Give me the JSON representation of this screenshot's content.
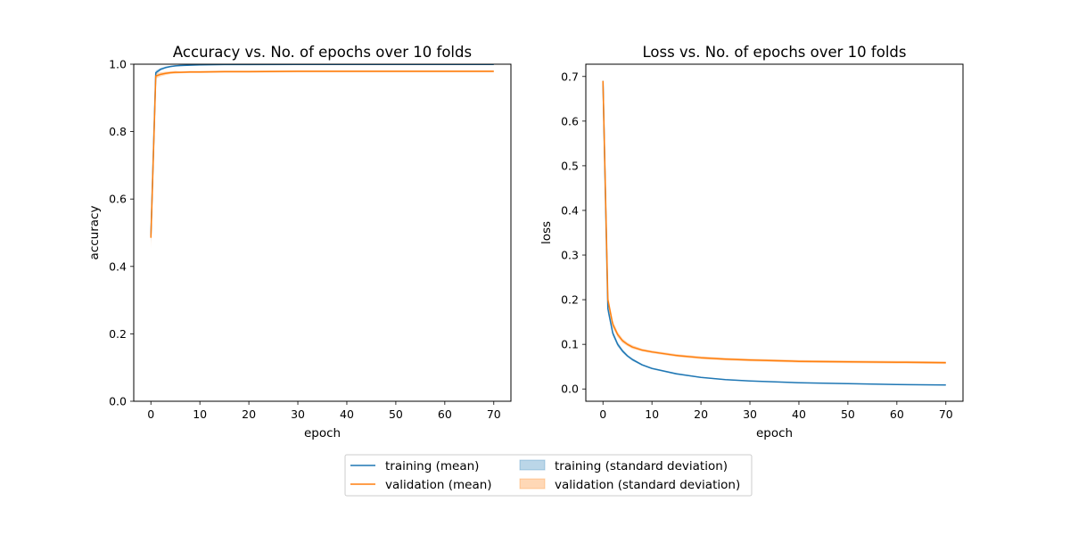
{
  "chart_data": [
    {
      "type": "line",
      "title": "Accuracy vs. No. of epochs over 10 folds",
      "xlabel": "epoch",
      "ylabel": "accuracy",
      "xlim": [
        -3.5,
        73.5
      ],
      "ylim": [
        0.0,
        1.0
      ],
      "xticks": [
        0,
        10,
        20,
        30,
        40,
        50,
        60,
        70
      ],
      "yticks": [
        0.0,
        0.2,
        0.4,
        0.6,
        0.8,
        1.0
      ],
      "ytick_labels": [
        "0.0",
        "0.2",
        "0.4",
        "0.6",
        "0.8",
        "1.0"
      ],
      "grid": false,
      "series": [
        {
          "name": "training (mean)",
          "color": "#1f77b4",
          "x": [
            0,
            1,
            2,
            3,
            4,
            5,
            6,
            8,
            10,
            15,
            20,
            30,
            40,
            50,
            60,
            70
          ],
          "y": [
            0.49,
            0.975,
            0.985,
            0.99,
            0.993,
            0.995,
            0.996,
            0.997,
            0.998,
            0.999,
            0.999,
            0.9995,
            0.9995,
            0.9995,
            0.9995,
            0.9995
          ],
          "std": [
            0.02,
            0.006,
            0.004,
            0.003,
            0.002,
            0.002,
            0.002,
            0.001,
            0.001,
            0.001,
            0.001,
            0.0005,
            0.0005,
            0.0005,
            0.0005,
            0.0005
          ]
        },
        {
          "name": "validation (mean)",
          "color": "#ff7f0e",
          "x": [
            0,
            1,
            2,
            3,
            4,
            5,
            6,
            8,
            10,
            15,
            20,
            30,
            40,
            50,
            60,
            70
          ],
          "y": [
            0.485,
            0.965,
            0.97,
            0.973,
            0.975,
            0.976,
            0.976,
            0.977,
            0.977,
            0.978,
            0.978,
            0.979,
            0.979,
            0.979,
            0.979,
            0.979
          ],
          "std": [
            0.03,
            0.008,
            0.006,
            0.005,
            0.004,
            0.004,
            0.003,
            0.003,
            0.003,
            0.003,
            0.003,
            0.003,
            0.003,
            0.003,
            0.003,
            0.003
          ]
        }
      ]
    },
    {
      "type": "line",
      "title": "Loss vs. No. of epochs over 10 folds",
      "xlabel": "epoch",
      "ylabel": "loss",
      "xlim": [
        -3.5,
        73.5
      ],
      "ylim": [
        -0.0275,
        0.7275
      ],
      "xticks": [
        0,
        10,
        20,
        30,
        40,
        50,
        60,
        70
      ],
      "yticks": [
        0.0,
        0.1,
        0.2,
        0.3,
        0.4,
        0.5,
        0.6,
        0.7
      ],
      "ytick_labels": [
        "0.0",
        "0.1",
        "0.2",
        "0.3",
        "0.4",
        "0.5",
        "0.6",
        "0.7"
      ],
      "grid": false,
      "series": [
        {
          "name": "training (mean)",
          "color": "#1f77b4",
          "x": [
            0,
            1,
            2,
            3,
            4,
            5,
            6,
            8,
            10,
            15,
            20,
            25,
            30,
            40,
            50,
            60,
            70
          ],
          "y": [
            0.69,
            0.18,
            0.125,
            0.1,
            0.085,
            0.074,
            0.066,
            0.054,
            0.046,
            0.034,
            0.026,
            0.021,
            0.018,
            0.014,
            0.012,
            0.01,
            0.009
          ],
          "std": [
            0.002,
            0.01,
            0.006,
            0.005,
            0.004,
            0.003,
            0.003,
            0.002,
            0.002,
            0.002,
            0.001,
            0.001,
            0.001,
            0.001,
            0.001,
            0.001,
            0.001
          ]
        },
        {
          "name": "validation (mean)",
          "color": "#ff7f0e",
          "x": [
            0,
            1,
            2,
            3,
            4,
            5,
            6,
            8,
            10,
            15,
            20,
            25,
            30,
            40,
            50,
            60,
            70
          ],
          "y": [
            0.69,
            0.2,
            0.145,
            0.122,
            0.108,
            0.1,
            0.094,
            0.087,
            0.083,
            0.075,
            0.07,
            0.067,
            0.065,
            0.062,
            0.061,
            0.06,
            0.059
          ],
          "std": [
            0.003,
            0.012,
            0.008,
            0.006,
            0.005,
            0.004,
            0.004,
            0.003,
            0.003,
            0.003,
            0.003,
            0.003,
            0.003,
            0.003,
            0.003,
            0.003,
            0.003
          ]
        }
      ]
    }
  ],
  "legend": {
    "placement": "bottom-center",
    "entries": [
      {
        "label": "training (mean)",
        "kind": "line",
        "color": "#1f77b4"
      },
      {
        "label": "validation (mean)",
        "kind": "line",
        "color": "#ff7f0e"
      },
      {
        "label": "training (standard deviation)",
        "kind": "patch",
        "color": "#1f77b4"
      },
      {
        "label": "validation (standard deviation)",
        "kind": "patch",
        "color": "#ff7f0e"
      }
    ]
  }
}
